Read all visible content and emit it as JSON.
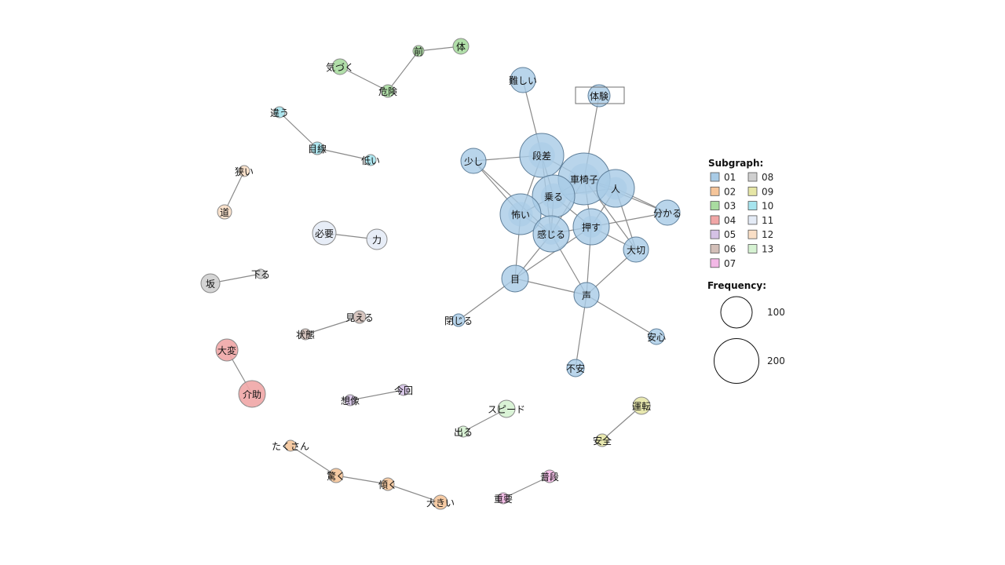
{
  "subgraph_colors": {
    "01": "#a8cbe6",
    "02": "#f5c59a",
    "03": "#a9dca0",
    "04": "#f0a6a6",
    "05": "#d5c2e6",
    "06": "#d3bfb8",
    "07": "#f3b8e6",
    "08": "#cfcfcf",
    "09": "#e6e6a6",
    "10": "#a6e4ee",
    "11": "#e4ebf6",
    "12": "#fadfc6",
    "13": "#d6f2d2"
  },
  "nodes": [
    {
      "id": "sharyoushi",
      "label": "車椅子",
      "group": "01",
      "freq": 210
    },
    {
      "id": "dansa",
      "label": "段差",
      "group": "01",
      "freq": 150
    },
    {
      "id": "noru",
      "label": "乗る",
      "group": "01",
      "freq": 145
    },
    {
      "id": "kowai",
      "label": "怖い",
      "group": "01",
      "freq": 155
    },
    {
      "id": "hito",
      "label": "人",
      "group": "01",
      "freq": 115
    },
    {
      "id": "kanjiru",
      "label": "感じる",
      "group": "01",
      "freq": 110
    },
    {
      "id": "osu",
      "label": "押す",
      "group": "01",
      "freq": 105
    },
    {
      "id": "taisetsu",
      "label": "大切",
      "group": "01",
      "freq": 50
    },
    {
      "id": "wakaru",
      "label": "分かる",
      "group": "01",
      "freq": 50
    },
    {
      "id": "sukoshi",
      "label": "少し",
      "group": "01",
      "freq": 45
    },
    {
      "id": "muzukashii",
      "label": "難しい",
      "group": "01",
      "freq": 45
    },
    {
      "id": "taiken",
      "label": "体験",
      "group": "01",
      "freq": 35
    },
    {
      "id": "me",
      "label": "目",
      "group": "01",
      "freq": 45
    },
    {
      "id": "koe",
      "label": "声",
      "group": "01",
      "freq": 45
    },
    {
      "id": "anshin",
      "label": "安心",
      "group": "01",
      "freq": 18
    },
    {
      "id": "fuan",
      "label": "不安",
      "group": "01",
      "freq": 22
    },
    {
      "id": "tojiru",
      "label": "閉じる",
      "group": "01",
      "freq": 12
    },
    {
      "id": "kizuku",
      "label": "気づく",
      "group": "03",
      "freq": 22
    },
    {
      "id": "kiken",
      "label": "危険",
      "group": "03",
      "freq": 14
    },
    {
      "id": "mae",
      "label": "前",
      "group": "03",
      "freq": 12
    },
    {
      "id": "karada",
      "label": "体",
      "group": "03",
      "freq": 20
    },
    {
      "id": "chigau",
      "label": "違う",
      "group": "10",
      "freq": 12
    },
    {
      "id": "mesen",
      "label": "目線",
      "group": "10",
      "freq": 14
    },
    {
      "id": "hikui",
      "label": "低い",
      "group": "10",
      "freq": 12
    },
    {
      "id": "semai",
      "label": "狭い",
      "group": "12",
      "freq": 12
    },
    {
      "id": "michi",
      "label": "道",
      "group": "12",
      "freq": 18
    },
    {
      "id": "hitsuyou",
      "label": "必要",
      "group": "11",
      "freq": 40
    },
    {
      "id": "chikara",
      "label": "力",
      "group": "11",
      "freq": 32
    },
    {
      "id": "saka",
      "label": "坂",
      "group": "08",
      "freq": 28
    },
    {
      "id": "kudaru",
      "label": "下る",
      "group": "08",
      "freq": 10
    },
    {
      "id": "mieru",
      "label": "見える",
      "group": "06",
      "freq": 14
    },
    {
      "id": "joutai",
      "label": "状態",
      "group": "06",
      "freq": 12
    },
    {
      "id": "taihen",
      "label": "大変",
      "group": "04",
      "freq": 35
    },
    {
      "id": "kaijo",
      "label": "介助",
      "group": "04",
      "freq": 55
    },
    {
      "id": "souzou",
      "label": "想像",
      "group": "05",
      "freq": 12
    },
    {
      "id": "konkai",
      "label": "今回",
      "group": "05",
      "freq": 12
    },
    {
      "id": "speed",
      "label": "スピード",
      "group": "13",
      "freq": 25
    },
    {
      "id": "deru",
      "label": "出る",
      "group": "13",
      "freq": 12
    },
    {
      "id": "unten",
      "label": "運転",
      "group": "09",
      "freq": 22
    },
    {
      "id": "anzen",
      "label": "安全",
      "group": "09",
      "freq": 14
    },
    {
      "id": "takusan",
      "label": "たくさん",
      "group": "02",
      "freq": 12
    },
    {
      "id": "odoroku",
      "label": "驚く",
      "group": "02",
      "freq": 18
    },
    {
      "id": "katamuku",
      "label": "傾く",
      "group": "02",
      "freq": 14
    },
    {
      "id": "ookii",
      "label": "大きい",
      "group": "02",
      "freq": 18
    },
    {
      "id": "fudan",
      "label": "普段",
      "group": "07",
      "freq": 14
    },
    {
      "id": "juuyou",
      "label": "重要",
      "group": "07",
      "freq": 12
    }
  ],
  "edges": [
    [
      "sharyoushi",
      "hito"
    ],
    [
      "sharyoushi",
      "noru"
    ],
    [
      "sharyoushi",
      "dansa"
    ],
    [
      "sharyoushi",
      "osu"
    ],
    [
      "sharyoushi",
      "kanjiru"
    ],
    [
      "sharyoushi",
      "taiken"
    ],
    [
      "sharyoushi",
      "wakaru"
    ],
    [
      "sharyoushi",
      "kowai"
    ],
    [
      "sharyoushi",
      "taisetsu"
    ],
    [
      "dansa",
      "noru"
    ],
    [
      "dansa",
      "sukoshi"
    ],
    [
      "dansa",
      "kowai"
    ],
    [
      "dansa",
      "muzukashii"
    ],
    [
      "dansa",
      "kanjiru"
    ],
    [
      "noru",
      "kowai"
    ],
    [
      "noru",
      "kanjiru"
    ],
    [
      "noru",
      "osu"
    ],
    [
      "noru",
      "hito"
    ],
    [
      "kowai",
      "kanjiru"
    ],
    [
      "kowai",
      "sukoshi"
    ],
    [
      "kowai",
      "me"
    ],
    [
      "sukoshi",
      "kanjiru"
    ],
    [
      "kanjiru",
      "osu"
    ],
    [
      "kanjiru",
      "me"
    ],
    [
      "kanjiru",
      "koe"
    ],
    [
      "osu",
      "hito"
    ],
    [
      "osu",
      "koe"
    ],
    [
      "osu",
      "taisetsu"
    ],
    [
      "osu",
      "wakaru"
    ],
    [
      "osu",
      "me"
    ],
    [
      "hito",
      "taisetsu"
    ],
    [
      "hito",
      "wakaru"
    ],
    [
      "koe",
      "me"
    ],
    [
      "koe",
      "taisetsu"
    ],
    [
      "koe",
      "anshin"
    ],
    [
      "koe",
      "fuan"
    ],
    [
      "me",
      "tojiru"
    ],
    [
      "kizuku",
      "kiken"
    ],
    [
      "kiken",
      "mae"
    ],
    [
      "mae",
      "karada"
    ],
    [
      "chigau",
      "mesen"
    ],
    [
      "mesen",
      "hikui"
    ],
    [
      "semai",
      "michi"
    ],
    [
      "hitsuyou",
      "chikara"
    ],
    [
      "saka",
      "kudaru"
    ],
    [
      "joutai",
      "mieru"
    ],
    [
      "taihen",
      "kaijo"
    ],
    [
      "souzou",
      "konkai"
    ],
    [
      "deru",
      "speed"
    ],
    [
      "unten",
      "anzen"
    ],
    [
      "takusan",
      "odoroku"
    ],
    [
      "odoroku",
      "katamuku"
    ],
    [
      "katamuku",
      "ookii"
    ],
    [
      "fudan",
      "juuyou"
    ]
  ],
  "highlighted_node": "taiken",
  "legend": {
    "subgraph_title": "Subgraph:",
    "subgraphs": [
      "01",
      "02",
      "03",
      "04",
      "05",
      "06",
      "07",
      "08",
      "09",
      "10",
      "11",
      "12",
      "13"
    ],
    "frequency_title": "Frequency:",
    "frequency_values": [
      100,
      200
    ]
  }
}
